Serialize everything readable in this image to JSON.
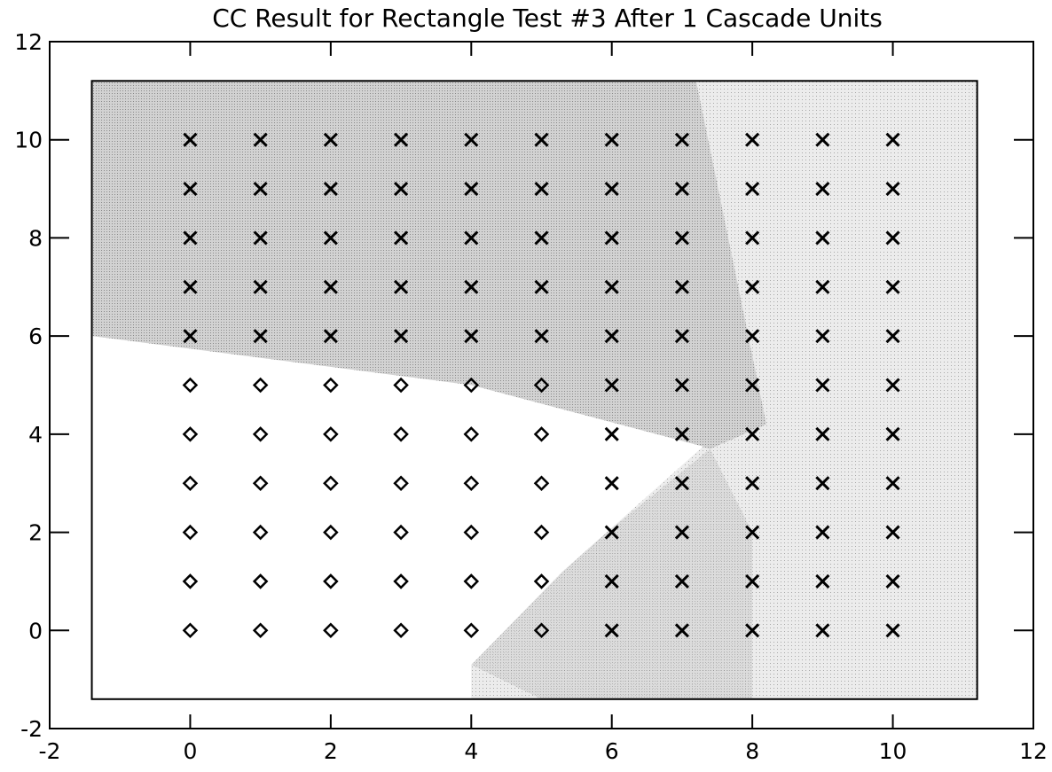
{
  "chart_data": {
    "type": "scatter",
    "title": "CC Result for Rectangle Test #3 After  1 Cascade Units",
    "xlim": [
      -2,
      12
    ],
    "ylim": [
      -2,
      12
    ],
    "xticks": [
      -2,
      0,
      2,
      4,
      6,
      8,
      10,
      12
    ],
    "yticks": [
      -2,
      0,
      2,
      4,
      6,
      8,
      10,
      12
    ],
    "series": [
      {
        "marker": "x",
        "color": "#000000",
        "x": [
          0,
          1,
          2,
          3,
          4,
          5,
          6,
          7,
          8,
          9,
          10,
          0,
          1,
          2,
          3,
          4,
          5,
          6,
          7,
          8,
          9,
          10,
          0,
          1,
          2,
          3,
          4,
          5,
          6,
          7,
          8,
          9,
          10,
          0,
          1,
          2,
          3,
          4,
          5,
          6,
          7,
          8,
          9,
          10,
          0,
          1,
          2,
          3,
          4,
          5,
          6,
          7,
          8,
          9,
          10,
          6,
          7,
          8,
          9,
          10,
          6,
          7,
          8,
          9,
          10,
          6,
          7,
          8,
          9,
          10,
          6,
          7,
          8,
          9,
          10,
          6,
          7,
          8,
          9,
          10,
          6,
          7,
          8,
          9,
          10
        ],
        "y": [
          10,
          10,
          10,
          10,
          10,
          10,
          10,
          10,
          10,
          10,
          10,
          9,
          9,
          9,
          9,
          9,
          9,
          9,
          9,
          9,
          9,
          9,
          8,
          8,
          8,
          8,
          8,
          8,
          8,
          8,
          8,
          8,
          8,
          7,
          7,
          7,
          7,
          7,
          7,
          7,
          7,
          7,
          7,
          7,
          6,
          6,
          6,
          6,
          6,
          6,
          6,
          6,
          6,
          6,
          6,
          5,
          5,
          5,
          5,
          5,
          4,
          4,
          4,
          4,
          4,
          3,
          3,
          3,
          3,
          3,
          2,
          2,
          2,
          2,
          2,
          1,
          1,
          1,
          1,
          1,
          0,
          0,
          0,
          0,
          0
        ]
      },
      {
        "marker": "diamond",
        "color": "#000000",
        "x": [
          0,
          1,
          2,
          3,
          4,
          5,
          0,
          1,
          2,
          3,
          4,
          5,
          0,
          1,
          2,
          3,
          4,
          5,
          0,
          1,
          2,
          3,
          4,
          5,
          0,
          1,
          2,
          3,
          4,
          5,
          0,
          1,
          2,
          3,
          4,
          5
        ],
        "y": [
          5,
          5,
          5,
          5,
          5,
          5,
          4,
          4,
          4,
          4,
          4,
          4,
          3,
          3,
          3,
          3,
          3,
          3,
          2,
          2,
          2,
          2,
          2,
          2,
          1,
          1,
          1,
          1,
          1,
          1,
          0,
          0,
          0,
          0,
          0,
          0
        ]
      }
    ]
  }
}
